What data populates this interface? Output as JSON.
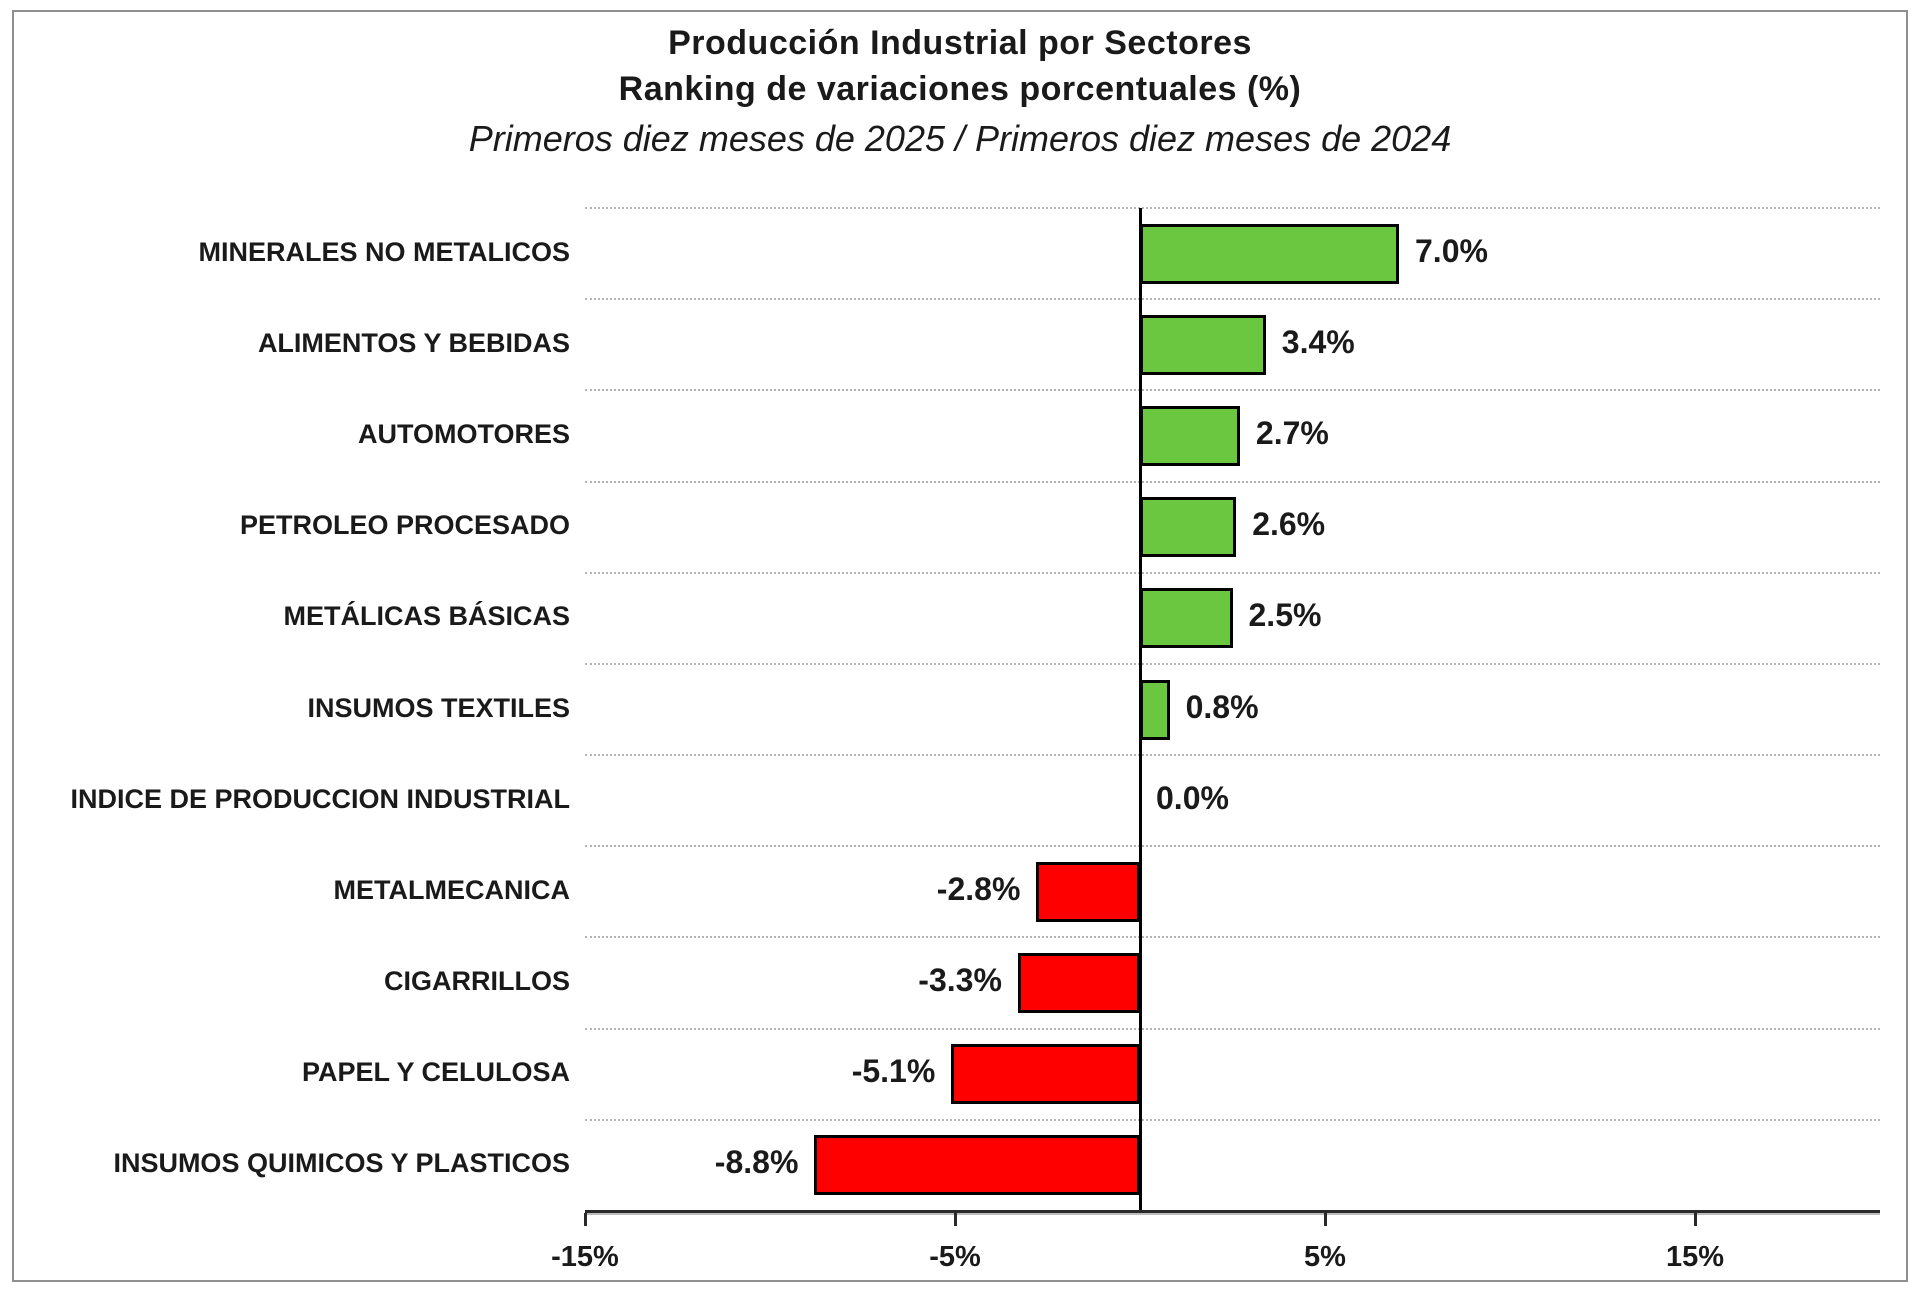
{
  "title": {
    "line1": "Producción Industrial por Sectores",
    "line2": "Ranking de variaciones porcentuales (%)",
    "subtitle": "Primeros diez meses de 2025 / Primeros diez meses de 2024"
  },
  "chart_data": {
    "type": "bar",
    "orientation": "horizontal",
    "title": "Producción Industrial por Sectores",
    "title_line2": "Ranking de variaciones porcentuales (%)",
    "subtitle": "Primeros diez meses de 2025 / Primeros diez meses de 2024",
    "categories": [
      "MINERALES NO METALICOS",
      "ALIMENTOS Y BEBIDAS",
      "AUTOMOTORES",
      "PETROLEO PROCESADO",
      "METÁLICAS BÁSICAS",
      "INSUMOS TEXTILES",
      "INDICE DE PRODUCCION INDUSTRIAL",
      "METALMECANICA",
      "CIGARRILLOS",
      "PAPEL Y CELULOSA",
      "INSUMOS QUIMICOS Y PLASTICOS"
    ],
    "values": [
      7.0,
      3.4,
      2.7,
      2.6,
      2.5,
      0.8,
      0.0,
      -2.8,
      -3.3,
      -5.1,
      -8.8
    ],
    "value_labels": [
      "7.0%",
      "3.4%",
      "2.7%",
      "2.6%",
      "2.5%",
      "0.8%",
      "0.0%",
      "-2.8%",
      "-3.3%",
      "-5.1%",
      "-8.8%"
    ],
    "xlabel": "",
    "ylabel": "",
    "xlim": [
      -15,
      20
    ],
    "x_ticks": [
      -15,
      -5,
      5,
      15
    ],
    "x_tick_labels": [
      "-15%",
      "-5%",
      "5%",
      "15%"
    ],
    "grid": "horizontal-dotted",
    "zero_line": true,
    "legend": "none",
    "colors": {
      "positive_bar": "#6BC73F",
      "negative_bar": "#FE0000",
      "bar_border": "#000000",
      "gridline": "#b3b3b3",
      "axis": "#2a2a2a",
      "text": "#1a1a1a",
      "frame_border": "#8f8f8f"
    }
  }
}
